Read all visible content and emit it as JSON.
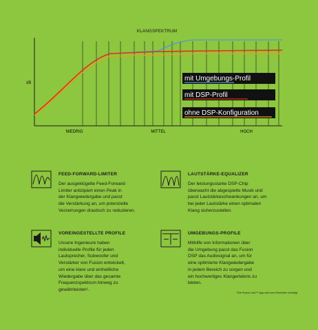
{
  "chart": {
    "title": "KLANGSPEKTRUM",
    "y_label": "dB",
    "x_labels": [
      "NIEDRIG",
      "MITTEL",
      "HOCH"
    ],
    "legend": [
      "mit Umgebungs-Profil",
      "mit DSP-Profil",
      "ohne DSP-Konfiguration"
    ]
  },
  "features": [
    {
      "title": "FEED-FORWARD-LIMITER",
      "lines": [
        "Der ausgeklügelte Feed-Forward-",
        "Limiter antizipiert einen Peak in",
        "der Klangwiedergabe und passt",
        "die Verstärkung an, um potenzielle",
        "Verzerrungen drastisch zu reduzieren."
      ]
    },
    {
      "title": "LAUTSTÄRKE-EQUALIZER",
      "lines": [
        "Der leistungsstarke DSP-Chip",
        "überwacht die abgespielte Musik und",
        "passt Lautstärkeschwankungen an, um",
        "bei jeder Lautstärke einen optimalen",
        "Klang sicherzustellen."
      ]
    },
    {
      "title": "VOREINGESTELLTE PROFILE",
      "lines": [
        "Unsere Ingenieure haben",
        "individuelle Profile für jeden",
        "Lautsprecher, Subwoofer und",
        "Verstärker von Fusion entwickelt,",
        "um eine klare und einheitliche",
        "Wiedergabe über das gesamte",
        "Frequenzspektrum hinweg zu",
        "gewährleisten¹."
      ]
    },
    {
      "title": "UMGEBUNGS-PROFILE",
      "lines": [
        "Mithilfe von Informationen über",
        "die Umgebung passt das Fusion",
        "DSP das Audiosignal an, um für",
        "eine optimierte Klangwiedergabe",
        "in jedem Bereich zu sorgen und",
        "ein hochwertiges Klangerlebnis zu",
        "bieten."
      ]
    }
  ],
  "footnote": "¹Die Fusion-Link™-App wird zum Einrichten benötigt"
}
